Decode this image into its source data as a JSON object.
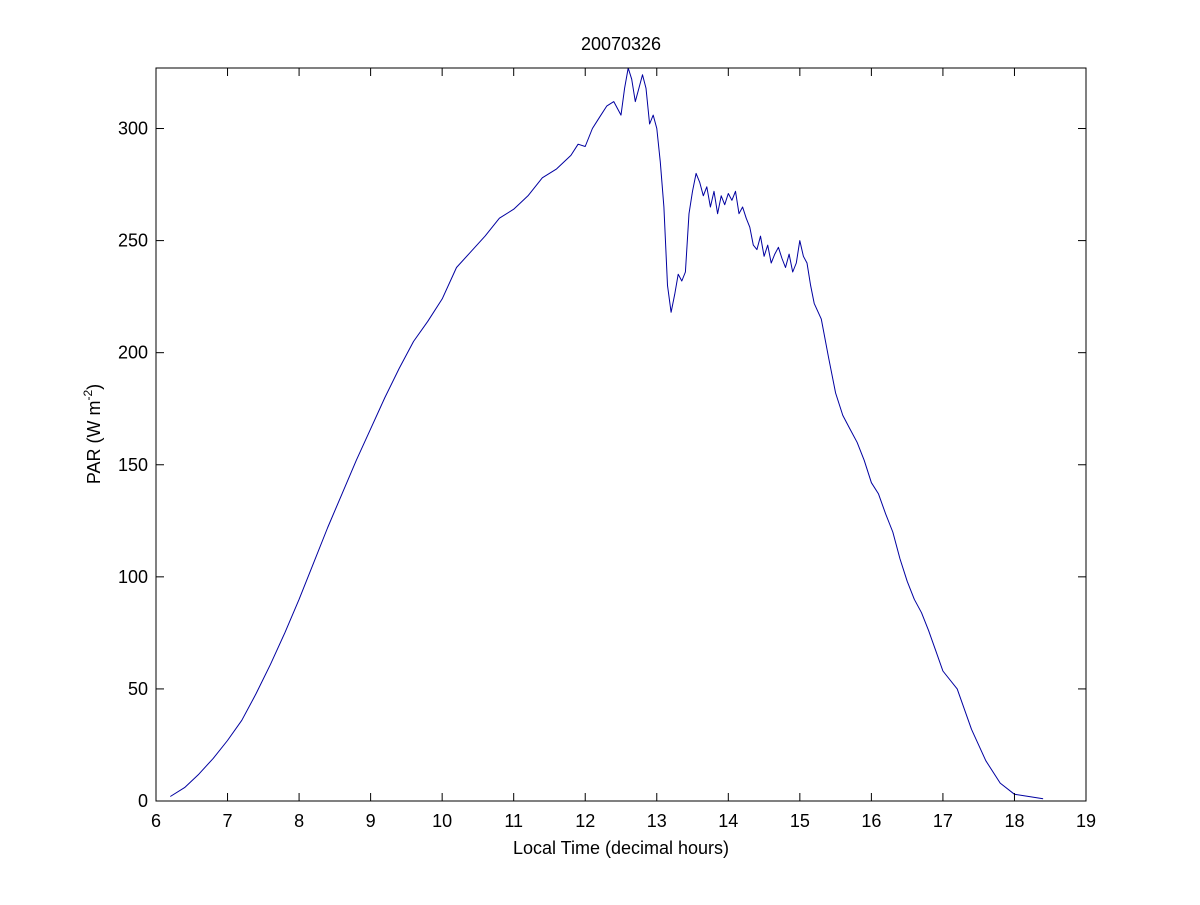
{
  "chart_data": {
    "type": "line",
    "title": "20070326",
    "xlabel": "Local Time (decimal hours)",
    "ylabel": {
      "prefix": "PAR (W m",
      "superscript": "-2",
      "suffix": ")"
    },
    "xlim": [
      6,
      19
    ],
    "ylim": [
      0,
      327
    ],
    "xticks": [
      6,
      7,
      8,
      9,
      10,
      11,
      12,
      13,
      14,
      15,
      16,
      17,
      18,
      19
    ],
    "yticks": [
      0,
      50,
      100,
      150,
      200,
      250,
      300
    ],
    "grid": false,
    "line_color": "#0000a0",
    "series": [
      {
        "x": [
          6.2,
          6.4,
          6.6,
          6.8,
          7.0,
          7.2,
          7.4,
          7.6,
          7.8,
          8.0,
          8.2,
          8.4,
          8.6,
          8.8,
          9.0,
          9.2,
          9.4,
          9.6,
          9.8,
          10.0,
          10.2,
          10.4,
          10.6,
          10.8,
          11.0,
          11.2,
          11.4,
          11.6,
          11.8,
          11.9,
          12.0,
          12.1,
          12.2,
          12.3,
          12.4,
          12.5,
          12.55,
          12.6,
          12.65,
          12.7,
          12.75,
          12.8,
          12.85,
          12.9,
          12.95,
          13.0,
          13.05,
          13.1,
          13.15,
          13.2,
          13.25,
          13.3,
          13.35,
          13.4,
          13.45,
          13.5,
          13.55,
          13.6,
          13.65,
          13.7,
          13.75,
          13.8,
          13.85,
          13.9,
          13.95,
          14.0,
          14.05,
          14.1,
          14.15,
          14.2,
          14.25,
          14.3,
          14.35,
          14.4,
          14.45,
          14.5,
          14.55,
          14.6,
          14.65,
          14.7,
          14.75,
          14.8,
          14.85,
          14.9,
          14.95,
          15.0,
          15.05,
          15.1,
          15.15,
          15.2,
          15.3,
          15.4,
          15.5,
          15.6,
          15.7,
          15.8,
          15.9,
          16.0,
          16.1,
          16.2,
          16.3,
          16.4,
          16.5,
          16.6,
          16.7,
          16.8,
          16.9,
          17.0,
          17.2,
          17.4,
          17.6,
          17.8,
          18.0,
          18.2,
          18.4
        ],
        "y": [
          2,
          6,
          12,
          19,
          27,
          36,
          48,
          61,
          75,
          90,
          106,
          122,
          137,
          152,
          166,
          180,
          193,
          205,
          214,
          224,
          238,
          245,
          252,
          260,
          264,
          270,
          278,
          282,
          288,
          293,
          292,
          300,
          305,
          310,
          312,
          306,
          318,
          327,
          322,
          312,
          318,
          324,
          318,
          302,
          306,
          300,
          285,
          265,
          230,
          218,
          226,
          235,
          232,
          236,
          262,
          272,
          280,
          276,
          270,
          274,
          265,
          272,
          262,
          270,
          266,
          271,
          268,
          272,
          262,
          265,
          260,
          256,
          248,
          246,
          252,
          243,
          248,
          240,
          244,
          247,
          242,
          238,
          244,
          236,
          240,
          250,
          243,
          240,
          230,
          222,
          215,
          198,
          182,
          172,
          166,
          160,
          152,
          142,
          137,
          128,
          120,
          108,
          98,
          90,
          84,
          76,
          67,
          58,
          50,
          32,
          18,
          8,
          3,
          2,
          1
        ],
        "noise_note": ""
      }
    ]
  }
}
